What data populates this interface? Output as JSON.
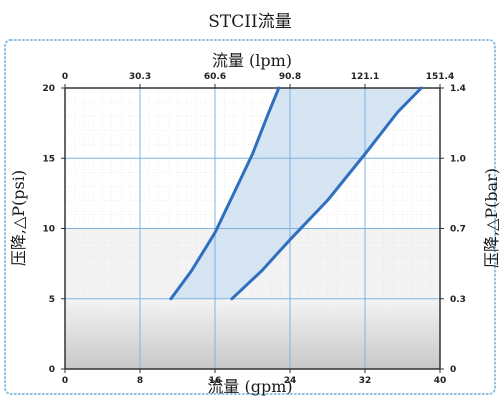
{
  "chart_data": {
    "type": "area",
    "title": "STCII流量",
    "x_top_label": "流量 (lpm)",
    "x_bottom_label": "流量 (gpm)",
    "y_left_label": "压降,△P(psi)",
    "y_right_label": "压降,△P(bar)",
    "xlim": [
      0,
      40
    ],
    "ylim": [
      0,
      20
    ],
    "x_bottom_ticks": [
      "0",
      "8",
      "16",
      "24",
      "32",
      "40"
    ],
    "x_bottom_tick_values": [
      0,
      8,
      16,
      24,
      32,
      40
    ],
    "x_top_ticks": [
      "0",
      "30.3",
      "60.6",
      "90.8",
      "121.1",
      "151.4"
    ],
    "y_left_ticks": [
      "0",
      "5",
      "10",
      "15",
      "20"
    ],
    "y_left_tick_values": [
      0,
      5,
      10,
      15,
      20
    ],
    "y_right_ticks": [
      "0",
      "0.3",
      "0.7",
      "1.0",
      "1.4"
    ],
    "series": [
      {
        "x": [
          11.3,
          13.5,
          16.0,
          18.0,
          20.0,
          21.7,
          22.8
        ],
        "y": [
          5,
          7,
          9.7,
          12.5,
          15.3,
          18.2,
          20
        ]
      },
      {
        "x": [
          17.8,
          21.0,
          24.0,
          28.0,
          32.0,
          35.5,
          38.0
        ],
        "y": [
          5,
          7,
          9.2,
          12.0,
          15.3,
          18.3,
          20
        ]
      }
    ],
    "colors": {
      "line": "#2f6fbf",
      "band_fill": "#cfe0f1",
      "grid": "#7fb3de",
      "frame_border": "#8cc0e3",
      "plot_border": "#333333",
      "low_zone_top": "#f4f4f4",
      "low_zone_bottom": "#c8c8c8"
    },
    "grid": true
  }
}
